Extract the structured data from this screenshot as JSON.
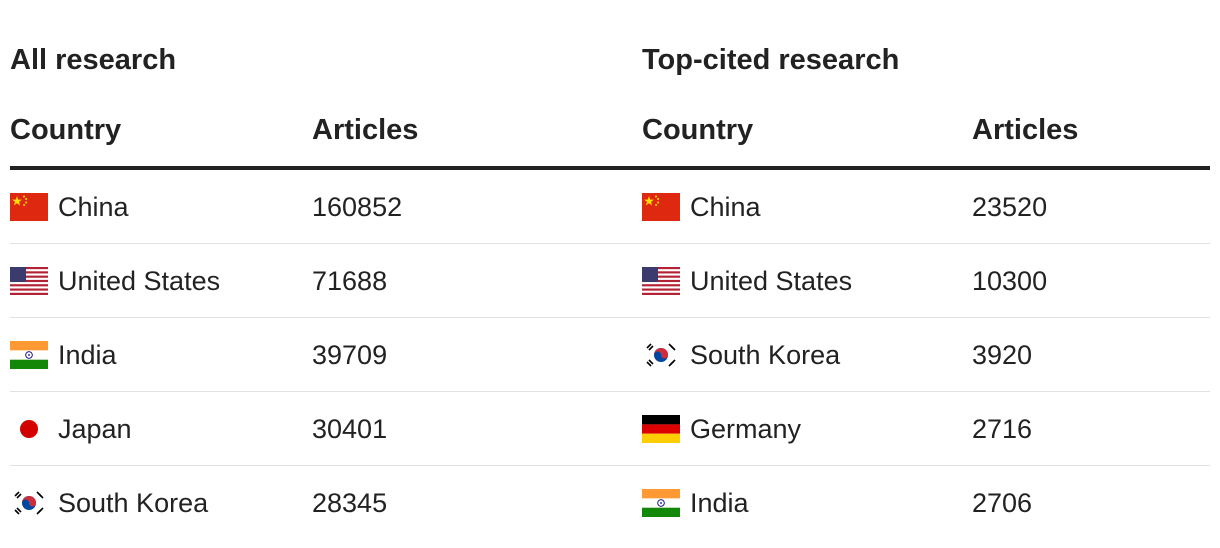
{
  "tables": [
    {
      "title": "All research",
      "columns": [
        "Country",
        "Articles"
      ],
      "rows": [
        [
          "China",
          160852
        ],
        [
          "United States",
          71688
        ],
        [
          "India",
          39709
        ],
        [
          "Japan",
          30401
        ],
        [
          "South Korea",
          28345
        ]
      ]
    },
    {
      "title": "Top-cited research",
      "columns": [
        "Country",
        "Articles"
      ],
      "rows": [
        [
          "China",
          23520
        ],
        [
          "United States",
          10300
        ],
        [
          "South Korea",
          3920
        ],
        [
          "Germany",
          2716
        ],
        [
          "India",
          2706
        ]
      ]
    }
  ]
}
